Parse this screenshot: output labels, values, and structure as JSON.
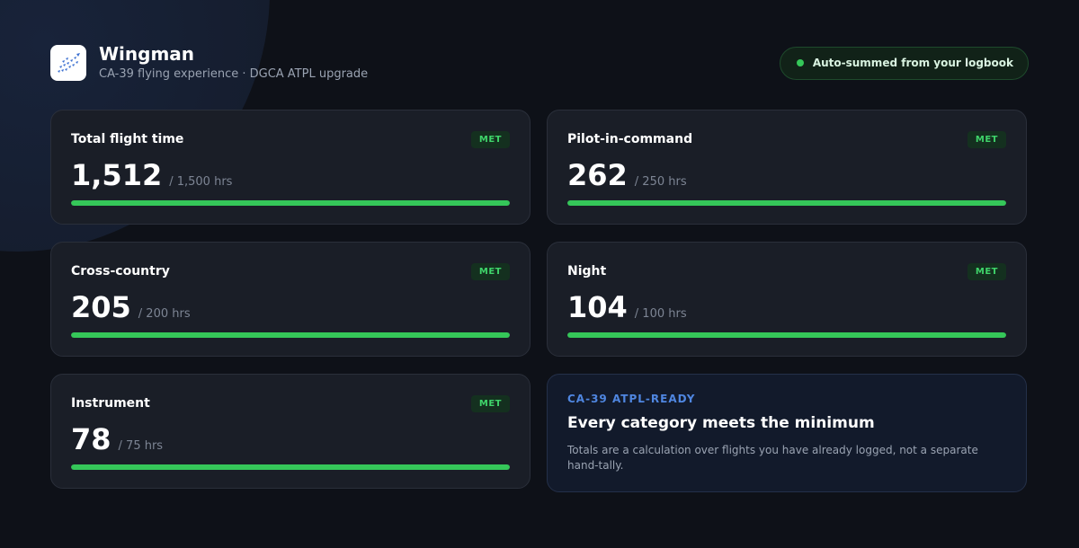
{
  "header": {
    "logo_icon": "formation-chart-icon",
    "title": "Wingman",
    "subtitle": "CA-39 flying experience · DGCA ATPL upgrade",
    "status_label": "Auto-summed from your logbook",
    "status_color": "#35c759"
  },
  "badge_label": "MET",
  "categories": [
    {
      "label": "Total flight time",
      "value": "1,512",
      "target": "/ 1,500 hrs",
      "progress": 1.0
    },
    {
      "label": "Pilot-in-command",
      "value": "262",
      "target": "/ 250 hrs",
      "progress": 1.0
    },
    {
      "label": "Cross-country",
      "value": "205",
      "target": "/ 200 hrs",
      "progress": 1.0
    },
    {
      "label": "Night",
      "value": "104",
      "target": "/ 100 hrs",
      "progress": 1.0
    },
    {
      "label": "Instrument",
      "value": "78",
      "target": "/ 75 hrs",
      "progress": 1.0
    }
  ],
  "summary": {
    "eyebrow": "CA-39 ATPL-READY",
    "title": "Every category meets the minimum",
    "body": "Totals are a calculation over flights you have already logged, not a separate hand-tally."
  },
  "colors": {
    "accent_green": "#35c759",
    "accent_blue": "#4f86e0",
    "background": "#0e1118",
    "card": "#1a1e27"
  }
}
